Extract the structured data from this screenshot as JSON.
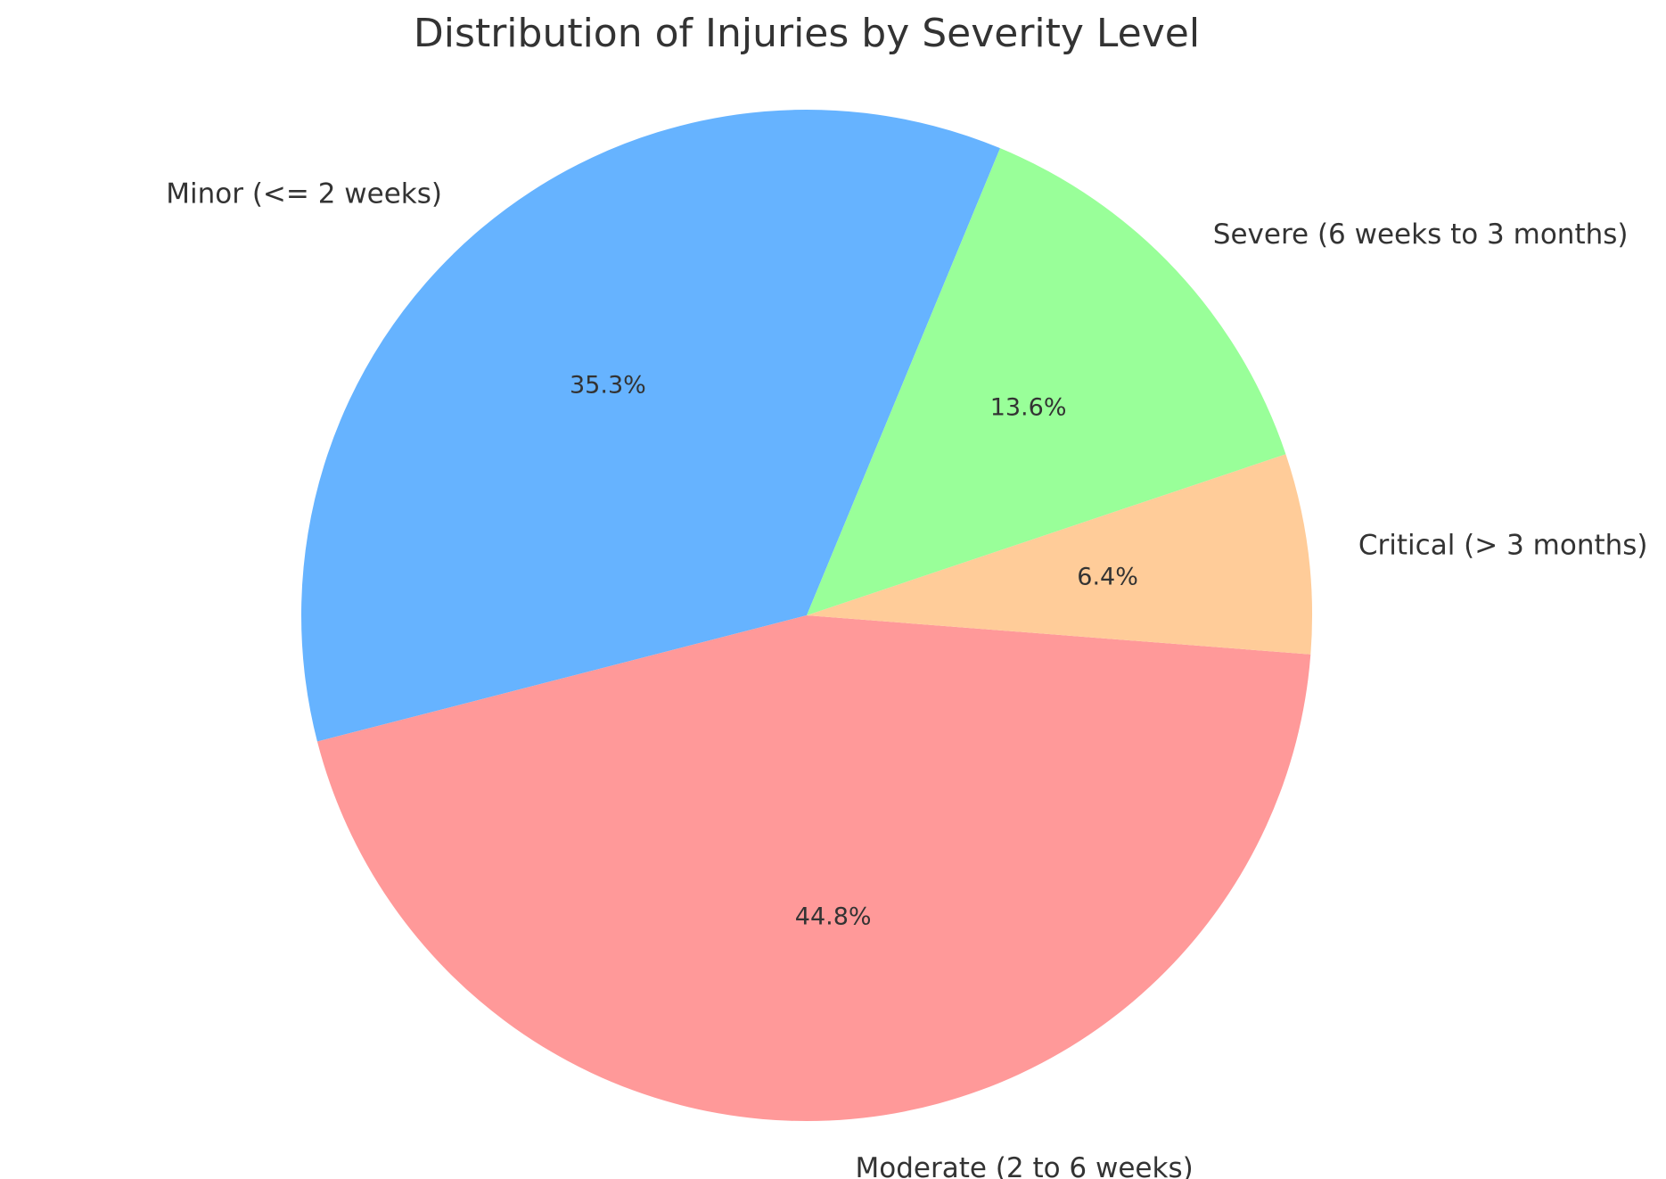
{
  "chart_data": {
    "type": "pie",
    "title": "Distribution of Injuries by Severity Level",
    "categories": [
      "Minor (<= 2 weeks)",
      "Moderate (2 to 6 weeks)",
      "Critical (> 3 months)",
      "Severe (6 weeks to 3 months)"
    ],
    "values": [
      35.3,
      44.8,
      6.4,
      13.6
    ],
    "percent_labels": [
      "35.3%",
      "44.8%",
      "6.4%",
      "13.6%"
    ],
    "colors": [
      "#66b3ff",
      "#ff9999",
      "#ffcc99",
      "#99ff99"
    ],
    "start_angle_deg": 67.5,
    "direction": "counterclockwise"
  }
}
